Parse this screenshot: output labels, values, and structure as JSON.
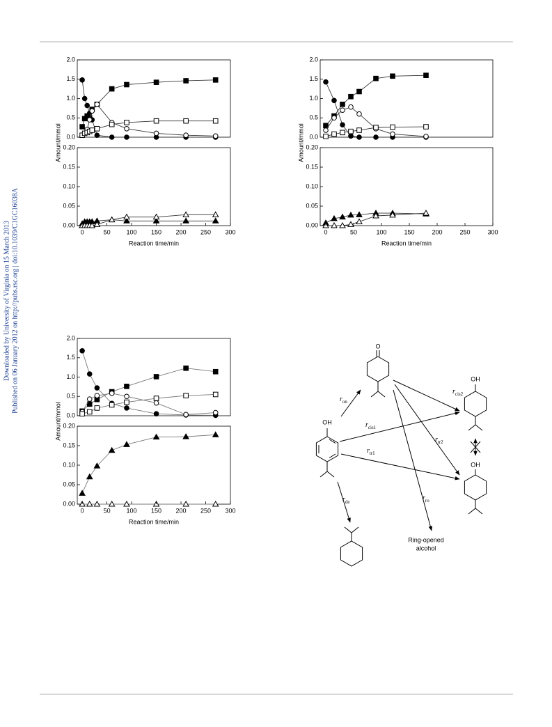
{
  "sidebar": [
    "Downloaded by University of Virginia on 15 March 2013",
    "Published on 06 January 2012 on http://pubs.rsc.org | doi:10.1039/C1GC16038A"
  ],
  "chart_data": [
    {
      "type": "scatter",
      "xlabel": "Reaction time/min",
      "ylabel": "Amount/mmol",
      "x": [
        0,
        5,
        10,
        15,
        20,
        30,
        60,
        90,
        150,
        210,
        270
      ],
      "xlim": [
        -10,
        300
      ],
      "xticks": [
        0,
        50,
        100,
        150,
        200,
        250,
        300
      ],
      "panels": [
        {
          "ylim": [
            0,
            2.0
          ],
          "yticks": [
            {
              "value": 0,
              "label": "0.0"
            },
            0.5,
            {
              "value": 1,
              "label": "1.0"
            },
            1.5,
            {
              "value": 2,
              "label": "2.0"
            }
          ],
          "series": [
            {
              "marker": "circle",
              "filled": true,
              "color": "#000000",
              "curve_color": "#333333",
              "values": [
                1.48,
                1.0,
                0.82,
                0.62,
                0.45,
                0.05,
                0.0,
                0.0,
                0.0,
                0.0,
                0.0
              ]
            },
            {
              "marker": "square",
              "filled": true,
              "color": "#000000",
              "curve_color": "#333333",
              "values": [
                0.27,
                0.48,
                0.55,
                0.5,
                0.72,
                0.85,
                1.25,
                1.36,
                1.42,
                1.46,
                1.48
              ]
            },
            {
              "marker": "circle",
              "filled": false,
              "color": "#000000",
              "curve_color": "#333333",
              "values": [
                0.05,
                0.1,
                0.2,
                0.45,
                0.68,
                0.85,
                0.38,
                0.22,
                0.1,
                0.05,
                0.03
              ]
            },
            {
              "marker": "square",
              "filled": false,
              "color": "#000000",
              "curve_color": "#333333",
              "values": [
                0.05,
                0.1,
                0.12,
                0.15,
                0.18,
                0.22,
                0.33,
                0.38,
                0.42,
                0.42,
                0.42
              ]
            }
          ]
        },
        {
          "ylim": [
            0,
            0.2
          ],
          "yticks": [
            {
              "value": 0,
              "label": "0.00"
            },
            0.05,
            {
              "value": 0.1,
              "label": "0.10"
            },
            0.15,
            {
              "value": 0.2,
              "label": "0.20"
            }
          ],
          "series": [
            {
              "marker": "triangle",
              "filled": true,
              "color": "#000000",
              "curve_color": "#333333",
              "values": [
                0.005,
                0.01,
                0.01,
                0.01,
                0.01,
                0.012,
                0.015,
                0.012,
                0.012,
                0.012,
                0.012
              ]
            },
            {
              "marker": "triangle",
              "filled": false,
              "color": "#000000",
              "curve_color": "#333333",
              "values": [
                0,
                0,
                0,
                0,
                0,
                0.003,
                0.015,
                0.022,
                0.022,
                0.028,
                0.028
              ]
            }
          ]
        }
      ]
    },
    {
      "type": "scatter",
      "xlabel": "Reaction time/min",
      "ylabel": "Amount/mmol",
      "x": [
        0,
        15,
        30,
        45,
        60,
        90,
        120,
        180
      ],
      "xlim": [
        -10,
        300
      ],
      "xticks": [
        0,
        50,
        100,
        150,
        200,
        250,
        300
      ],
      "panels": [
        {
          "ylim": [
            0,
            2.0
          ],
          "yticks": [
            {
              "value": 0,
              "label": "0.0"
            },
            0.5,
            {
              "value": 1,
              "label": "1.0"
            },
            1.5,
            {
              "value": 2,
              "label": "2.0"
            }
          ],
          "series": [
            {
              "marker": "circle",
              "filled": true,
              "color": "#000000",
              "curve_color": "#333333",
              "values": [
                1.43,
                0.95,
                0.32,
                0.03,
                0.0,
                0.0,
                0.0,
                0.0
              ]
            },
            {
              "marker": "square",
              "filled": true,
              "color": "#000000",
              "curve_color": "#333333",
              "values": [
                0.3,
                0.55,
                0.85,
                1.05,
                1.18,
                1.52,
                1.58,
                1.6
              ]
            },
            {
              "marker": "circle",
              "filled": false,
              "color": "#000000",
              "curve_color": "#333333",
              "values": [
                0.18,
                0.5,
                0.7,
                0.78,
                0.6,
                0.22,
                0.08,
                0.02
              ]
            },
            {
              "marker": "square",
              "filled": false,
              "color": "#000000",
              "curve_color": "#333333",
              "values": [
                0.02,
                0.08,
                0.12,
                0.15,
                0.18,
                0.25,
                0.26,
                0.27
              ]
            }
          ]
        },
        {
          "ylim": [
            0,
            0.2
          ],
          "yticks": [
            {
              "value": 0,
              "label": "0.00"
            },
            0.05,
            {
              "value": 0.1,
              "label": "0.10"
            },
            0.15,
            {
              "value": 0.2,
              "label": "0.20"
            }
          ],
          "series": [
            {
              "marker": "triangle",
              "filled": true,
              "color": "#000000",
              "curve_color": "#333333",
              "values": [
                0.007,
                0.018,
                0.022,
                0.027,
                0.028,
                0.032,
                0.032,
                0.03
              ]
            },
            {
              "marker": "triangle",
              "filled": false,
              "color": "#000000",
              "curve_color": "#333333",
              "values": [
                0,
                0,
                0,
                0.003,
                0.01,
                0.025,
                0.027,
                0.032
              ]
            }
          ]
        }
      ]
    },
    {
      "type": "scatter",
      "xlabel": "Reaction time/min",
      "ylabel": "Amount/mmol",
      "x": [
        0,
        15,
        30,
        60,
        90,
        150,
        210,
        270
      ],
      "xlim": [
        -10,
        300
      ],
      "xticks": [
        0,
        50,
        100,
        150,
        200,
        250,
        300
      ],
      "panels": [
        {
          "ylim": [
            0,
            2.0
          ],
          "yticks": [
            {
              "value": 0,
              "label": "0.0"
            },
            0.5,
            {
              "value": 1,
              "label": "1.0"
            },
            1.5,
            {
              "value": 2,
              "label": "2.0"
            }
          ],
          "series": [
            {
              "marker": "circle",
              "filled": true,
              "color": "#000000",
              "curve_color": "#777777",
              "values": [
                1.68,
                1.08,
                0.72,
                0.32,
                0.2,
                0.05,
                0.02,
                0.01
              ]
            },
            {
              "marker": "square",
              "filled": true,
              "color": "#000000",
              "curve_color": "#777777",
              "values": [
                0.12,
                0.3,
                0.42,
                0.62,
                0.76,
                1.01,
                1.23,
                1.14
              ]
            },
            {
              "marker": "circle",
              "filled": false,
              "color": "#000000",
              "curve_color": "#777777",
              "values": [
                0.1,
                0.43,
                0.52,
                0.58,
                0.5,
                0.33,
                0.03,
                0.08
              ]
            },
            {
              "marker": "square",
              "filled": false,
              "color": "#000000",
              "curve_color": "#777777",
              "values": [
                0.05,
                0.1,
                0.2,
                0.28,
                0.35,
                0.45,
                0.52,
                0.55
              ]
            }
          ]
        },
        {
          "ylim": [
            0,
            0.2
          ],
          "yticks": [
            {
              "value": 0,
              "label": "0.00"
            },
            0.05,
            {
              "value": 0.1,
              "label": "0.10"
            },
            0.15,
            {
              "value": 0.2,
              "label": "0.20"
            }
          ],
          "series": [
            {
              "marker": "triangle",
              "filled": true,
              "color": "#000000",
              "curve_color": "#777777",
              "values": [
                0.028,
                0.07,
                0.098,
                0.138,
                0.153,
                0.172,
                0.173,
                0.178
              ]
            },
            {
              "marker": "triangle",
              "filled": false,
              "color": "#000000",
              "curve_color": "#777777",
              "values": [
                0,
                0,
                0,
                0,
                0,
                0,
                0,
                0
              ]
            }
          ]
        }
      ]
    }
  ],
  "scheme": {
    "ketone_label": "O",
    "hydroxyl_labels": [
      "OH",
      "OH",
      "OH"
    ],
    "rates": [
      {
        "symbol": "r",
        "sub": "on"
      },
      {
        "symbol": "r",
        "sub": "cis2"
      },
      {
        "symbol": "r",
        "sub": "cis1"
      },
      {
        "symbol": "r",
        "sub": "tr2"
      },
      {
        "symbol": "r",
        "sub": "tr1"
      },
      {
        "symbol": "r",
        "sub": "ro"
      },
      {
        "symbol": "r",
        "sub": "de"
      }
    ],
    "product": [
      "Ring-opened",
      "alcohol"
    ]
  }
}
